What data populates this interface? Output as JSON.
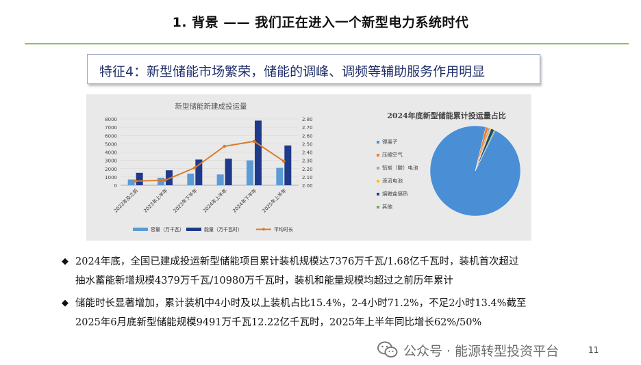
{
  "slide": {
    "title": "1. 背景 —— 我们正在进入一个新型电力系统时代",
    "feature": "特征4：新型储能市场繁荣，储能的调峰、调频等辅助服务作用明显",
    "accent_color": "#8fc05a",
    "page_number": "11"
  },
  "bullets": [
    {
      "lines": [
        "2024年底，全国已建成投运新型储能项目累计装机规模达7376万千瓦/1.68亿千瓦时，装机首次超过",
        "抽水蓄能新增规模4379万千瓦/10980万千瓦时，装机和能量规模均超过之前历年累计"
      ]
    },
    {
      "lines": [
        "储能时长显著增加，累计装机中4小时及以上装机占比15.4%，2-4小时71.2%，不足2小时13.4%截至",
        "2025年6月底新型储能规模9491万千瓦12.22亿千瓦时，2025年上半年同比增长62%/50%"
      ]
    }
  ],
  "watermark": {
    "icon": "wechat-icon",
    "text": "公众号 · 能源转型投资平台"
  },
  "chart_data": [
    {
      "type": "bar",
      "title": "新型储能新建成投运量",
      "categories": [
        "2022年及之前",
        "2023年上半年",
        "2023年下半年",
        "2024年上半年",
        "2024年下半年",
        "2025年上半年"
      ],
      "series": [
        {
          "name": "容量（万千瓦）",
          "type": "bar",
          "color": "#5b9bd5",
          "values": [
            700,
            900,
            1400,
            1300,
            3000,
            2100
          ]
        },
        {
          "name": "能量（万千瓦时）",
          "type": "bar",
          "color": "#1f3a8a",
          "values": [
            1500,
            1800,
            3100,
            3200,
            7800,
            4800
          ]
        },
        {
          "name": "平均时长",
          "type": "line",
          "axis": "right",
          "color": "#d97c2b",
          "values": [
            2.05,
            2.06,
            2.21,
            2.47,
            2.53,
            2.29
          ]
        }
      ],
      "y_left": {
        "min": 0,
        "max": 8000,
        "ticks": [
          "0",
          "1000",
          "2000",
          "3000",
          "4000",
          "5000",
          "6000",
          "7000",
          "8000"
        ]
      },
      "y_right": {
        "min": 2.0,
        "max": 2.8,
        "ticks": [
          "2.00",
          "2.10",
          "2.20",
          "2.30",
          "2.40",
          "2.50",
          "2.60",
          "2.70",
          "2.80"
        ]
      },
      "legend_position": "bottom"
    },
    {
      "type": "pie",
      "title": "2024年底新型储能累计投运量占比",
      "labels": [
        "锂离子",
        "压缩空气",
        "铅炭（酸）电池",
        "液流电池",
        "熔融盐储热",
        "其他"
      ],
      "values": [
        96.4,
        1.0,
        0.6,
        0.4,
        1.2,
        0.4
      ],
      "colors": [
        "#4a8fd6",
        "#ed7d31",
        "#a5a5a5",
        "#ffc000",
        "#264478",
        "#70ad47"
      ],
      "legend_position": "left"
    }
  ]
}
